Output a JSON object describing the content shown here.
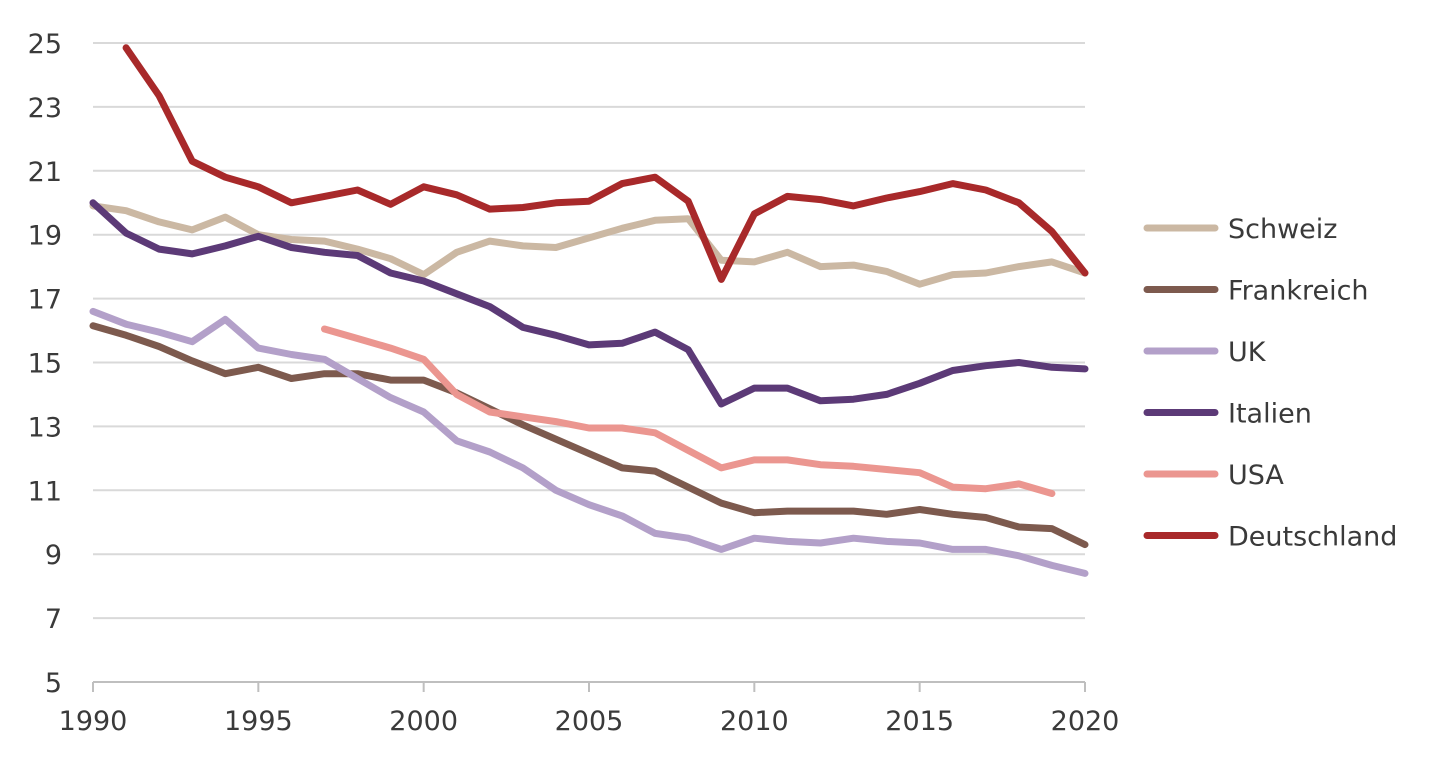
{
  "chart_data": {
    "type": "line",
    "title": "",
    "xlabel": "",
    "ylabel": "",
    "xlim": [
      1990,
      2020
    ],
    "ylim": [
      5,
      25
    ],
    "x_ticks": [
      1990,
      1995,
      2000,
      2005,
      2010,
      2015,
      2020
    ],
    "y_ticks": [
      5,
      7,
      9,
      11,
      13,
      15,
      17,
      19,
      21,
      23,
      25
    ],
    "grid": "horizontal",
    "legend_position": "right",
    "series": [
      {
        "name": "Schweiz",
        "color": "#cbb8a3",
        "x": [
          1990,
          1991,
          1992,
          1993,
          1994,
          1995,
          1996,
          1997,
          1998,
          1999,
          2000,
          2001,
          2002,
          2003,
          2004,
          2005,
          2006,
          2007,
          2008,
          2009,
          2010,
          2011,
          2012,
          2013,
          2014,
          2015,
          2016,
          2017,
          2018,
          2019,
          2020
        ],
        "y": [
          19.9,
          19.75,
          19.4,
          19.15,
          19.55,
          19.0,
          18.85,
          18.8,
          18.55,
          18.25,
          17.75,
          18.45,
          18.8,
          18.65,
          18.6,
          18.9,
          19.2,
          19.45,
          19.5,
          18.2,
          18.15,
          18.45,
          18.0,
          18.05,
          17.85,
          17.45,
          17.75,
          17.8,
          18.0,
          18.15,
          17.8
        ]
      },
      {
        "name": "Frankreich",
        "color": "#7d5a4e",
        "x": [
          1990,
          1991,
          1992,
          1993,
          1994,
          1995,
          1996,
          1997,
          1998,
          1999,
          2000,
          2001,
          2002,
          2003,
          2004,
          2005,
          2006,
          2007,
          2008,
          2009,
          2010,
          2011,
          2012,
          2013,
          2014,
          2015,
          2016,
          2017,
          2018,
          2019,
          2020
        ],
        "y": [
          16.15,
          15.85,
          15.5,
          15.05,
          14.65,
          14.85,
          14.5,
          14.65,
          14.65,
          14.45,
          14.45,
          14.05,
          13.55,
          13.05,
          12.6,
          12.15,
          11.7,
          11.6,
          11.1,
          10.6,
          10.3,
          10.35,
          10.35,
          10.35,
          10.25,
          10.4,
          10.25,
          10.15,
          9.85,
          9.8,
          9.3
        ]
      },
      {
        "name": "UK",
        "color": "#b3a0c9",
        "x": [
          1990,
          1991,
          1992,
          1993,
          1994,
          1995,
          1996,
          1997,
          1998,
          1999,
          2000,
          2001,
          2002,
          2003,
          2004,
          2005,
          2006,
          2007,
          2008,
          2009,
          2010,
          2011,
          2012,
          2013,
          2014,
          2015,
          2016,
          2017,
          2018,
          2019,
          2020
        ],
        "y": [
          16.6,
          16.2,
          15.95,
          15.65,
          16.35,
          15.45,
          15.25,
          15.1,
          14.5,
          13.9,
          13.45,
          12.55,
          12.2,
          11.7,
          11.0,
          10.55,
          10.2,
          9.65,
          9.5,
          9.15,
          9.5,
          9.4,
          9.35,
          9.5,
          9.4,
          9.35,
          9.15,
          9.15,
          8.95,
          8.65,
          8.4
        ]
      },
      {
        "name": "Italien",
        "color": "#5c3a77",
        "x": [
          1990,
          1991,
          1992,
          1993,
          1994,
          1995,
          1996,
          1997,
          1998,
          1999,
          2000,
          2001,
          2002,
          2003,
          2004,
          2005,
          2006,
          2007,
          2008,
          2009,
          2010,
          2011,
          2012,
          2013,
          2014,
          2015,
          2016,
          2017,
          2018,
          2019,
          2020
        ],
        "y": [
          20.0,
          19.05,
          18.55,
          18.4,
          18.65,
          18.95,
          18.6,
          18.45,
          18.35,
          17.8,
          17.55,
          17.15,
          16.75,
          16.1,
          15.85,
          15.55,
          15.6,
          15.95,
          15.4,
          13.7,
          14.2,
          14.2,
          13.8,
          13.85,
          14.0,
          14.35,
          14.75,
          14.9,
          15.0,
          14.85,
          14.8
        ]
      },
      {
        "name": "USA",
        "color": "#eb9690",
        "x": [
          1997,
          1998,
          1999,
          2000,
          2001,
          2002,
          2003,
          2004,
          2005,
          2006,
          2007,
          2008,
          2009,
          2010,
          2011,
          2012,
          2013,
          2014,
          2015,
          2016,
          2017,
          2018,
          2019
        ],
        "y": [
          16.05,
          15.75,
          15.45,
          15.1,
          14.0,
          13.45,
          13.3,
          13.15,
          12.95,
          12.95,
          12.8,
          12.25,
          11.7,
          11.95,
          11.95,
          11.8,
          11.75,
          11.65,
          11.55,
          11.1,
          11.05,
          11.2,
          10.9
        ]
      },
      {
        "name": "Deutschland",
        "color": "#a8292a",
        "x": [
          1991,
          1992,
          1993,
          1994,
          1995,
          1996,
          1997,
          1998,
          1999,
          2000,
          2001,
          2002,
          2003,
          2004,
          2005,
          2006,
          2007,
          2008,
          2009,
          2010,
          2011,
          2012,
          2013,
          2014,
          2015,
          2016,
          2017,
          2018,
          2019,
          2020
        ],
        "y": [
          24.85,
          23.35,
          21.3,
          20.8,
          20.5,
          20.0,
          20.2,
          20.4,
          19.95,
          20.5,
          20.25,
          19.8,
          19.85,
          20.0,
          20.05,
          20.6,
          20.8,
          20.05,
          17.6,
          19.65,
          20.2,
          20.1,
          19.9,
          20.15,
          20.35,
          20.6,
          20.4,
          20.0,
          19.1,
          17.8
        ]
      }
    ]
  }
}
